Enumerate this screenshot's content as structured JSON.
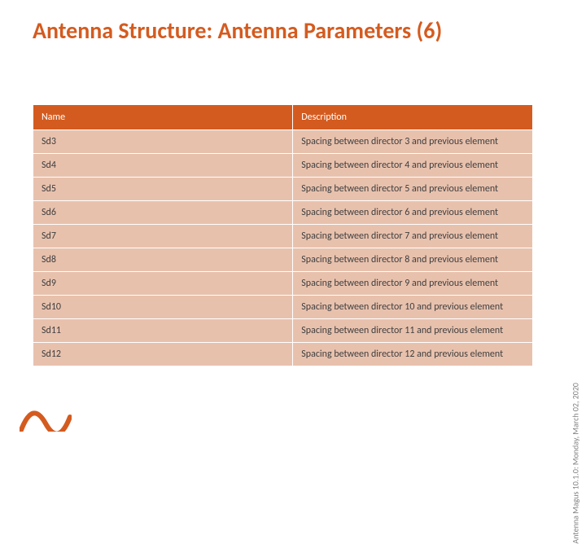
{
  "title": "Antenna Structure: Antenna Parameters (6)",
  "table": {
    "columns": [
      "Name",
      "Description"
    ],
    "rows": [
      [
        "Sd3",
        "Spacing between director 3 and previous element"
      ],
      [
        "Sd4",
        "Spacing between director 4 and previous element"
      ],
      [
        "Sd5",
        "Spacing between director 5 and previous element"
      ],
      [
        "Sd6",
        "Spacing between director 6 and previous element"
      ],
      [
        "Sd7",
        "Spacing between director 7 and previous element"
      ],
      [
        "Sd8",
        "Spacing between director 8 and previous element"
      ],
      [
        "Sd9",
        "Spacing between director 9 and previous element"
      ],
      [
        "Sd10",
        "Spacing between director 10 and previous element"
      ],
      [
        "Sd11",
        "Spacing between director 11 and previous element"
      ],
      [
        "Sd12",
        "Spacing between director 12 and previous element"
      ]
    ]
  },
  "footer": {
    "side_note": "Antenna Magus 10.1.0: Monday, March 02, 2020"
  },
  "colors": {
    "accent": "#d45b1f",
    "row_bg": "#e8c1ad",
    "row_text": "#3f3f3f",
    "header_text": "#ffffff",
    "side_note_text": "#808080",
    "logo": "#d45b1f"
  },
  "fonts": {
    "title_size_pt": 28,
    "cell_size_pt": 12,
    "side_note_size_pt": 10
  }
}
